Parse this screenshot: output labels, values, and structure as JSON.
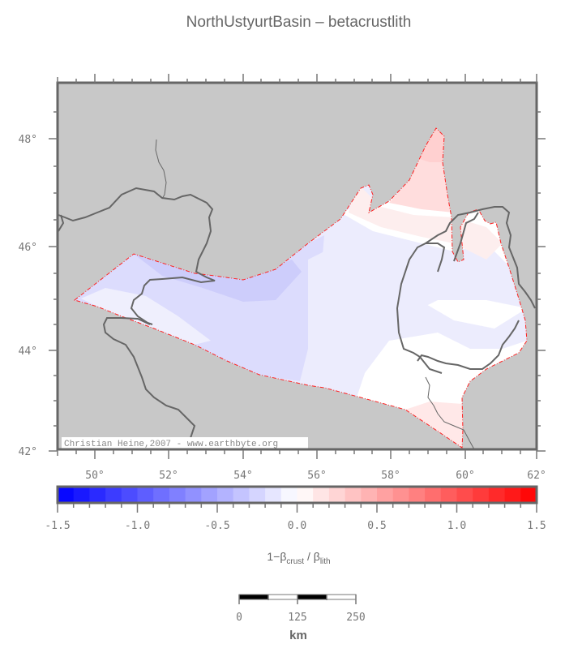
{
  "title": "NorthUstyurtBasin – betacrustlith",
  "map": {
    "background_color": "#c8c8c8",
    "frame_color": "#666666",
    "boundary_color": "#ff2020",
    "coastline_color": "#666666",
    "credit": "Christian Heine,2007 - www.earthbyte.org",
    "x_axis": {
      "ticks": [
        "50°",
        "52°",
        "54°",
        "56°",
        "58°",
        "60°",
        "62°"
      ],
      "values": [
        50,
        52,
        54,
        56,
        58,
        60,
        62
      ],
      "range": [
        49,
        62
      ]
    },
    "y_axis": {
      "ticks": [
        "42°",
        "44°",
        "46°",
        "48°"
      ],
      "values": [
        42,
        44,
        46,
        48
      ],
      "range": [
        42,
        49.2
      ]
    }
  },
  "colorbar": {
    "min": -1.5,
    "max": 1.5,
    "step": 0.1,
    "tick_labels": [
      "-1.5",
      "-1.0",
      "-0.5",
      "0.0",
      "0.5",
      "1.0",
      "1.5"
    ],
    "label_main": "1−β",
    "label_sub1": "crust",
    "label_mid": " / β",
    "label_sub2": "lith",
    "low_color": "#0000ff",
    "mid_color": "#ffffff",
    "high_color": "#ff0000"
  },
  "scalebar": {
    "labels": [
      "0",
      "125",
      "250"
    ],
    "unit": "km"
  }
}
